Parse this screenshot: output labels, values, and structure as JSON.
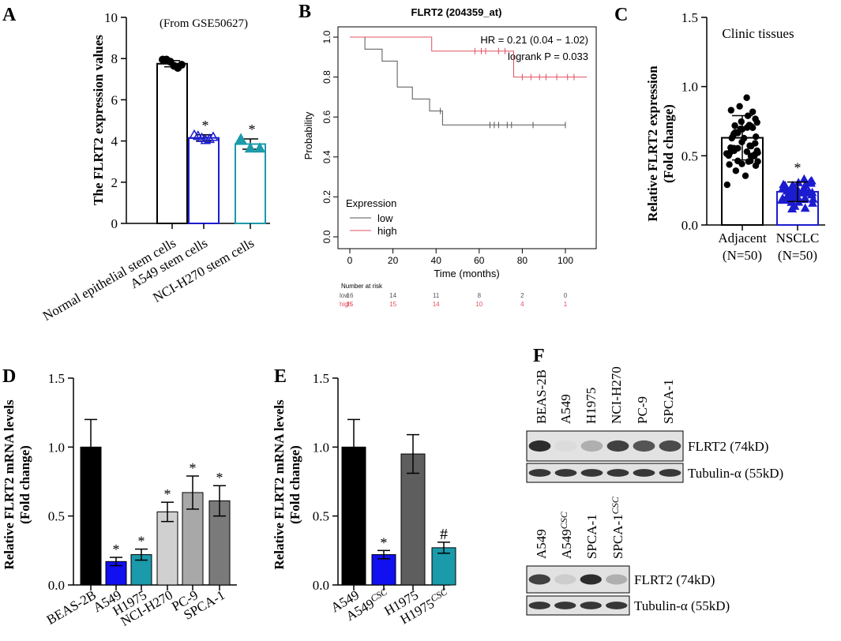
{
  "chart_data": [
    {
      "panel": "A",
      "type": "bar",
      "annotation": "(From GSE50627)",
      "ylabel": "The FLRT2 expression values",
      "ylim": [
        0,
        10
      ],
      "yticks": [
        "0",
        "2",
        "4",
        "6",
        "8",
        "10"
      ],
      "categories": [
        "Normal epithelial stem cells",
        "A549 stem cells",
        "NCI-H270 stem cells"
      ],
      "values": [
        7.75,
        4.15,
        3.85
      ],
      "errors": [
        0.15,
        0.15,
        0.25
      ],
      "points": [
        [
          7.95,
          7.95,
          7.85,
          7.65,
          7.55,
          7.7
        ],
        [
          4.3,
          4.25,
          4.15,
          4.05,
          4.1,
          4.2
        ],
        [
          4.1,
          3.65,
          3.65
        ]
      ],
      "markers": [
        "circle",
        "triangle-open",
        "triangle"
      ],
      "significance": [
        "",
        "*",
        "*"
      ],
      "colors": {
        "bar1": "#000000",
        "bar2": "#1c1ccf",
        "bar3": "#1a9aaa"
      }
    },
    {
      "panel": "B",
      "type": "line",
      "title": "FLRT2 (204359_at)",
      "xlabel": "Time (months)",
      "ylabel": "Probability",
      "xlim": [
        0,
        110
      ],
      "ylim": [
        0,
        1
      ],
      "xticks": [
        "0",
        "20",
        "40",
        "60",
        "80",
        "100"
      ],
      "yticks": [
        "0.0",
        "0.2",
        "0.4",
        "0.6",
        "0.8",
        "1.0"
      ],
      "stats": [
        "HR = 0.21 (0.04 − 1.02)",
        "logrank P = 0.033"
      ],
      "legend_title": "Expression",
      "series": [
        {
          "name": "low",
          "color": "#555555",
          "steps": [
            [
              0,
              1.0
            ],
            [
              7,
              1.0
            ],
            [
              7,
              0.94
            ],
            [
              15,
              0.94
            ],
            [
              15,
              0.88
            ],
            [
              22,
              0.88
            ],
            [
              22,
              0.75
            ],
            [
              29,
              0.75
            ],
            [
              29,
              0.69
            ],
            [
              37,
              0.69
            ],
            [
              37,
              0.63
            ],
            [
              43,
              0.63
            ],
            [
              43,
              0.56
            ],
            [
              100,
              0.56
            ]
          ],
          "censors": [
            [
              42,
              0.63
            ],
            [
              65,
              0.56
            ],
            [
              67,
              0.56
            ],
            [
              69,
              0.56
            ],
            [
              73,
              0.56
            ],
            [
              75,
              0.56
            ],
            [
              85,
              0.56
            ],
            [
              100,
              0.56
            ]
          ]
        },
        {
          "name": "high",
          "color": "#e05060",
          "steps": [
            [
              0,
              1.0
            ],
            [
              38,
              1.0
            ],
            [
              38,
              0.93
            ],
            [
              76,
              0.93
            ],
            [
              76,
              0.8
            ],
            [
              110,
              0.8
            ]
          ],
          "censors": [
            [
              58,
              0.93
            ],
            [
              61,
              0.93
            ],
            [
              63,
              0.93
            ],
            [
              69,
              0.93
            ],
            [
              72,
              0.93
            ],
            [
              80,
              0.8
            ],
            [
              84,
              0.8
            ],
            [
              88,
              0.8
            ],
            [
              91,
              0.8
            ],
            [
              96,
              0.8
            ],
            [
              101,
              0.8
            ],
            [
              104,
              0.8
            ]
          ]
        }
      ],
      "risk_table": {
        "title": "Number at risk",
        "rows": [
          {
            "name": "low",
            "values": [
              "16",
              "14",
              "11",
              "8",
              "2",
              "0"
            ]
          },
          {
            "name": "high",
            "values": [
              "15",
              "15",
              "14",
              "10",
              "4",
              "1"
            ]
          }
        ]
      }
    },
    {
      "panel": "C",
      "type": "bar",
      "annotation": "Clinic tissues",
      "ylabel_lines": [
        "Relative FLRT2 expression",
        "(Fold change)"
      ],
      "ylim": [
        0,
        1.5
      ],
      "yticks": [
        "0.0",
        "0.5",
        "1.0",
        "1.5"
      ],
      "categories": [
        "Adjacent",
        "NSCLC"
      ],
      "sublabels": [
        "(N=50)",
        "(N=50)"
      ],
      "values": [
        0.63,
        0.24
      ],
      "errors": [
        0.16,
        0.07
      ],
      "significance": [
        "",
        "*"
      ],
      "colors": {
        "bar1": "#000000",
        "bar2": "#1c1ccf"
      }
    },
    {
      "panel": "D",
      "type": "bar",
      "ylabel_lines": [
        "Relative FLRT2 mRNA levels",
        "(Fold change)"
      ],
      "ylim": [
        0,
        1.5
      ],
      "yticks": [
        "0.0",
        "0.5",
        "1.0",
        "1.5"
      ],
      "categories": [
        "BEAS-2B",
        "A549",
        "H1975",
        "NCI-H270",
        "PC-9",
        "SPCA-1"
      ],
      "values": [
        1.0,
        0.17,
        0.22,
        0.53,
        0.67,
        0.61
      ],
      "errors": [
        0.2,
        0.03,
        0.04,
        0.07,
        0.12,
        0.11
      ],
      "colors": [
        "#000000",
        "#1010f0",
        "#1a9aaa",
        "#d0d0d0",
        "#a8a8a8",
        "#7a7a7a"
      ],
      "significance": [
        "",
        "*",
        "*",
        "*",
        "*",
        "*"
      ]
    },
    {
      "panel": "E",
      "type": "bar",
      "ylabel_lines": [
        "Relative FLRT2 mRNA levels",
        "(Fold change)"
      ],
      "ylim": [
        0,
        1.5
      ],
      "yticks": [
        "0.0",
        "0.5",
        "1.0",
        "1.5"
      ],
      "categories": [
        {
          "base": "A549",
          "sup": ""
        },
        {
          "base": "A549",
          "sup": "CSC"
        },
        {
          "base": "H1975",
          "sup": ""
        },
        {
          "base": "H1975",
          "sup": "CSC"
        }
      ],
      "values": [
        1.0,
        0.22,
        0.95,
        0.27
      ],
      "errors": [
        0.2,
        0.03,
        0.14,
        0.04
      ],
      "colors": [
        "#000000",
        "#1010f0",
        "#5e5e5e",
        "#1a9aaa"
      ],
      "significance": [
        "",
        "*",
        "",
        "#"
      ]
    }
  ],
  "panel_labels": [
    "A",
    "B",
    "C",
    "D",
    "E",
    "F"
  ],
  "blots": [
    {
      "lanes": [
        {
          "base": "BEAS-2B",
          "sup": ""
        },
        {
          "base": "A549",
          "sup": ""
        },
        {
          "base": "H1975",
          "sup": ""
        },
        {
          "base": "NCI-H270",
          "sup": ""
        },
        {
          "base": "PC-9",
          "sup": ""
        },
        {
          "base": "SPCA-1",
          "sup": ""
        }
      ],
      "bands": [
        {
          "label": "FLRT2 (74kD)",
          "intensity": [
            0.95,
            0.08,
            0.3,
            0.85,
            0.75,
            0.8
          ]
        },
        {
          "label": "Tubulin-α (55kD)",
          "intensity": [
            0.9,
            0.9,
            0.9,
            0.9,
            0.9,
            0.9
          ]
        }
      ]
    },
    {
      "lanes": [
        {
          "base": "A549",
          "sup": ""
        },
        {
          "base": "A549",
          "sup": "CSC"
        },
        {
          "base": "SPCA-1",
          "sup": ""
        },
        {
          "base": "SPCA-1",
          "sup": "CSC"
        }
      ],
      "bands": [
        {
          "label": "FLRT2 (74kD)",
          "intensity": [
            0.85,
            0.15,
            0.95,
            0.3
          ]
        },
        {
          "label": "Tubulin-α (55kD)",
          "intensity": [
            0.9,
            0.9,
            0.9,
            0.9
          ]
        }
      ]
    }
  ]
}
